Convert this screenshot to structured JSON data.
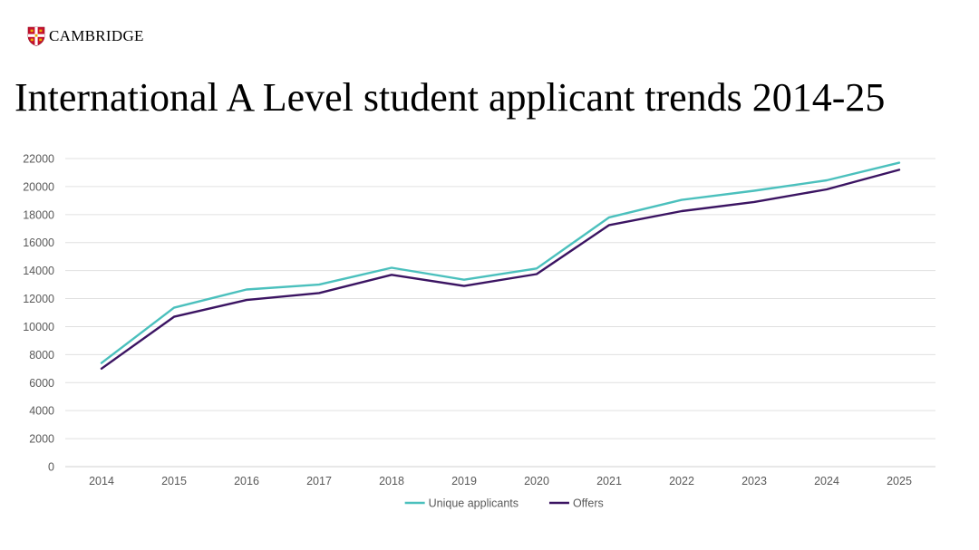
{
  "brand": {
    "name": "CAMBRIDGE",
    "icon": "cambridge-shield-icon"
  },
  "page": {
    "title": "International A Level student applicant trends 2014-25"
  },
  "chart_data": {
    "type": "line",
    "title": "",
    "xlabel": "",
    "ylabel": "",
    "categories": [
      "2014",
      "2015",
      "2016",
      "2017",
      "2018",
      "2019",
      "2020",
      "2021",
      "2022",
      "2023",
      "2024",
      "2025"
    ],
    "ylim": [
      0,
      22000
    ],
    "yticks": [
      0,
      2000,
      4000,
      6000,
      8000,
      10000,
      12000,
      14000,
      16000,
      18000,
      20000,
      22000
    ],
    "grid": true,
    "legend": "bottom",
    "series": [
      {
        "name": "Unique applicants",
        "color": "#4BC0BD",
        "values": [
          7400,
          11350,
          12650,
          13000,
          14200,
          13350,
          14150,
          17800,
          19050,
          19700,
          20450,
          21700
        ]
      },
      {
        "name": "Offers",
        "color": "#3B1462",
        "values": [
          7000,
          10700,
          11900,
          12400,
          13700,
          12900,
          13750,
          17250,
          18250,
          18900,
          19800,
          21200
        ]
      }
    ]
  }
}
